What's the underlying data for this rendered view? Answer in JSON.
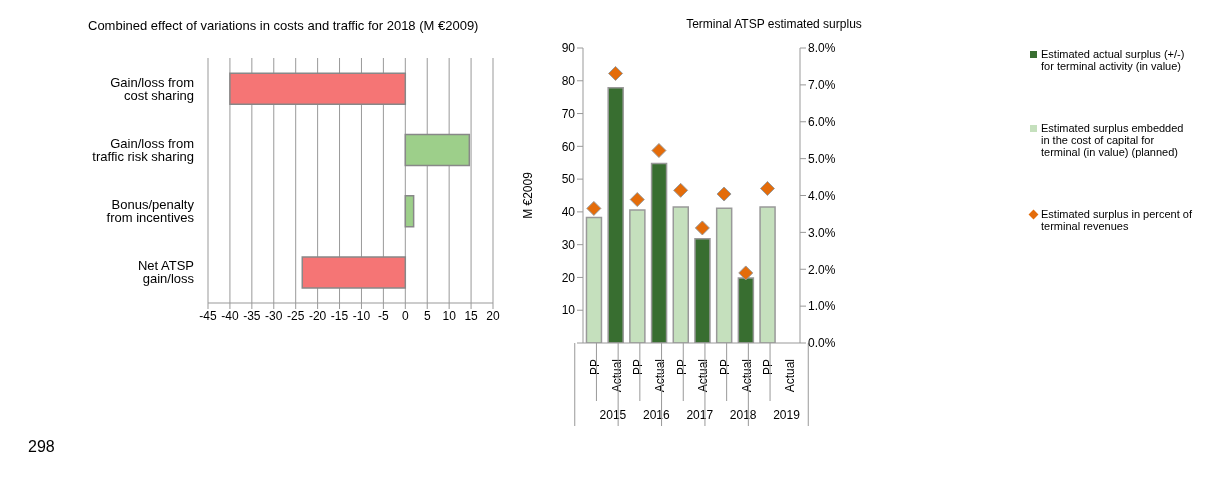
{
  "chart_data": [
    {
      "type": "bar",
      "orientation": "horizontal",
      "title": "Combined effect of variations in costs and traffic for 2018 (M €2009)",
      "categories": [
        "Gain/loss from cost sharing",
        "Gain/loss from traffic risk sharing",
        "Bonus/penalty from incentives",
        "Net ATSP gain/loss"
      ],
      "values": [
        -40,
        14.6,
        1.9,
        -23.5
      ],
      "colors": [
        "#f57575",
        "#9dcf8a",
        "#9dcf8a",
        "#f57575"
      ],
      "xlim": [
        -45,
        20
      ],
      "xticks": [
        -45,
        -40,
        -35,
        -30,
        -25,
        -20,
        -15,
        -10,
        -5,
        0,
        5,
        10,
        15,
        20
      ],
      "grid": "x",
      "annotations": [
        "298"
      ]
    },
    {
      "type": "bar",
      "title": "Terminal ATSP estimated surplus",
      "ylabel": "M €2009",
      "categories": [
        "PP",
        "Actual",
        "PP",
        "Actual",
        "PP",
        "Actual",
        "PP",
        "Actual",
        "PP",
        "Actual"
      ],
      "series": [
        {
          "name": "Estimated actual surplus (+/-) for terminal activity (in value)",
          "color": "#386e30",
          "values": [
            null,
            77.9,
            null,
            54.8,
            null,
            31.8,
            null,
            19.8,
            null,
            null
          ]
        },
        {
          "name": "Estimated surplus embedded in the cost of capital for terminal (in value) (planned)",
          "color": "#c5e0bd",
          "values": [
            38.3,
            null,
            40.6,
            null,
            41.5,
            null,
            41.1,
            null,
            41.5,
            null
          ]
        },
        {
          "name": "Estimated surplus in percent of terminal revenues",
          "type": "scatter",
          "axis": "y2",
          "marker": "diamond",
          "color": "#e46c0a",
          "values": [
            3.65,
            7.31,
            3.89,
            5.22,
            4.14,
            3.12,
            4.04,
            1.9,
            4.19,
            null
          ]
        }
      ],
      "ylim": [
        0,
        90
      ],
      "yticks": [
        {
          "value": 0,
          "label": null
        },
        10,
        20,
        30,
        40,
        50,
        60,
        70,
        80,
        90
      ],
      "y2lim": [
        0,
        8
      ],
      "y2ticks": [
        {
          "value": 0,
          "label": "0.0%"
        },
        {
          "value": 1,
          "label": "1.0%"
        },
        {
          "value": 2,
          "label": "2.0%"
        },
        {
          "value": 3,
          "label": "3.0%"
        },
        {
          "value": 4,
          "label": "4.0%"
        },
        {
          "value": 5,
          "label": "5.0%"
        },
        {
          "value": 6,
          "label": "6.0%"
        },
        {
          "value": 7,
          "label": "7.0%"
        },
        {
          "value": 8,
          "label": "8.0%"
        }
      ],
      "grid": false,
      "legend": "right",
      "annotations": [
        "2015",
        "2016",
        "2017",
        "2018",
        "2019"
      ]
    }
  ]
}
